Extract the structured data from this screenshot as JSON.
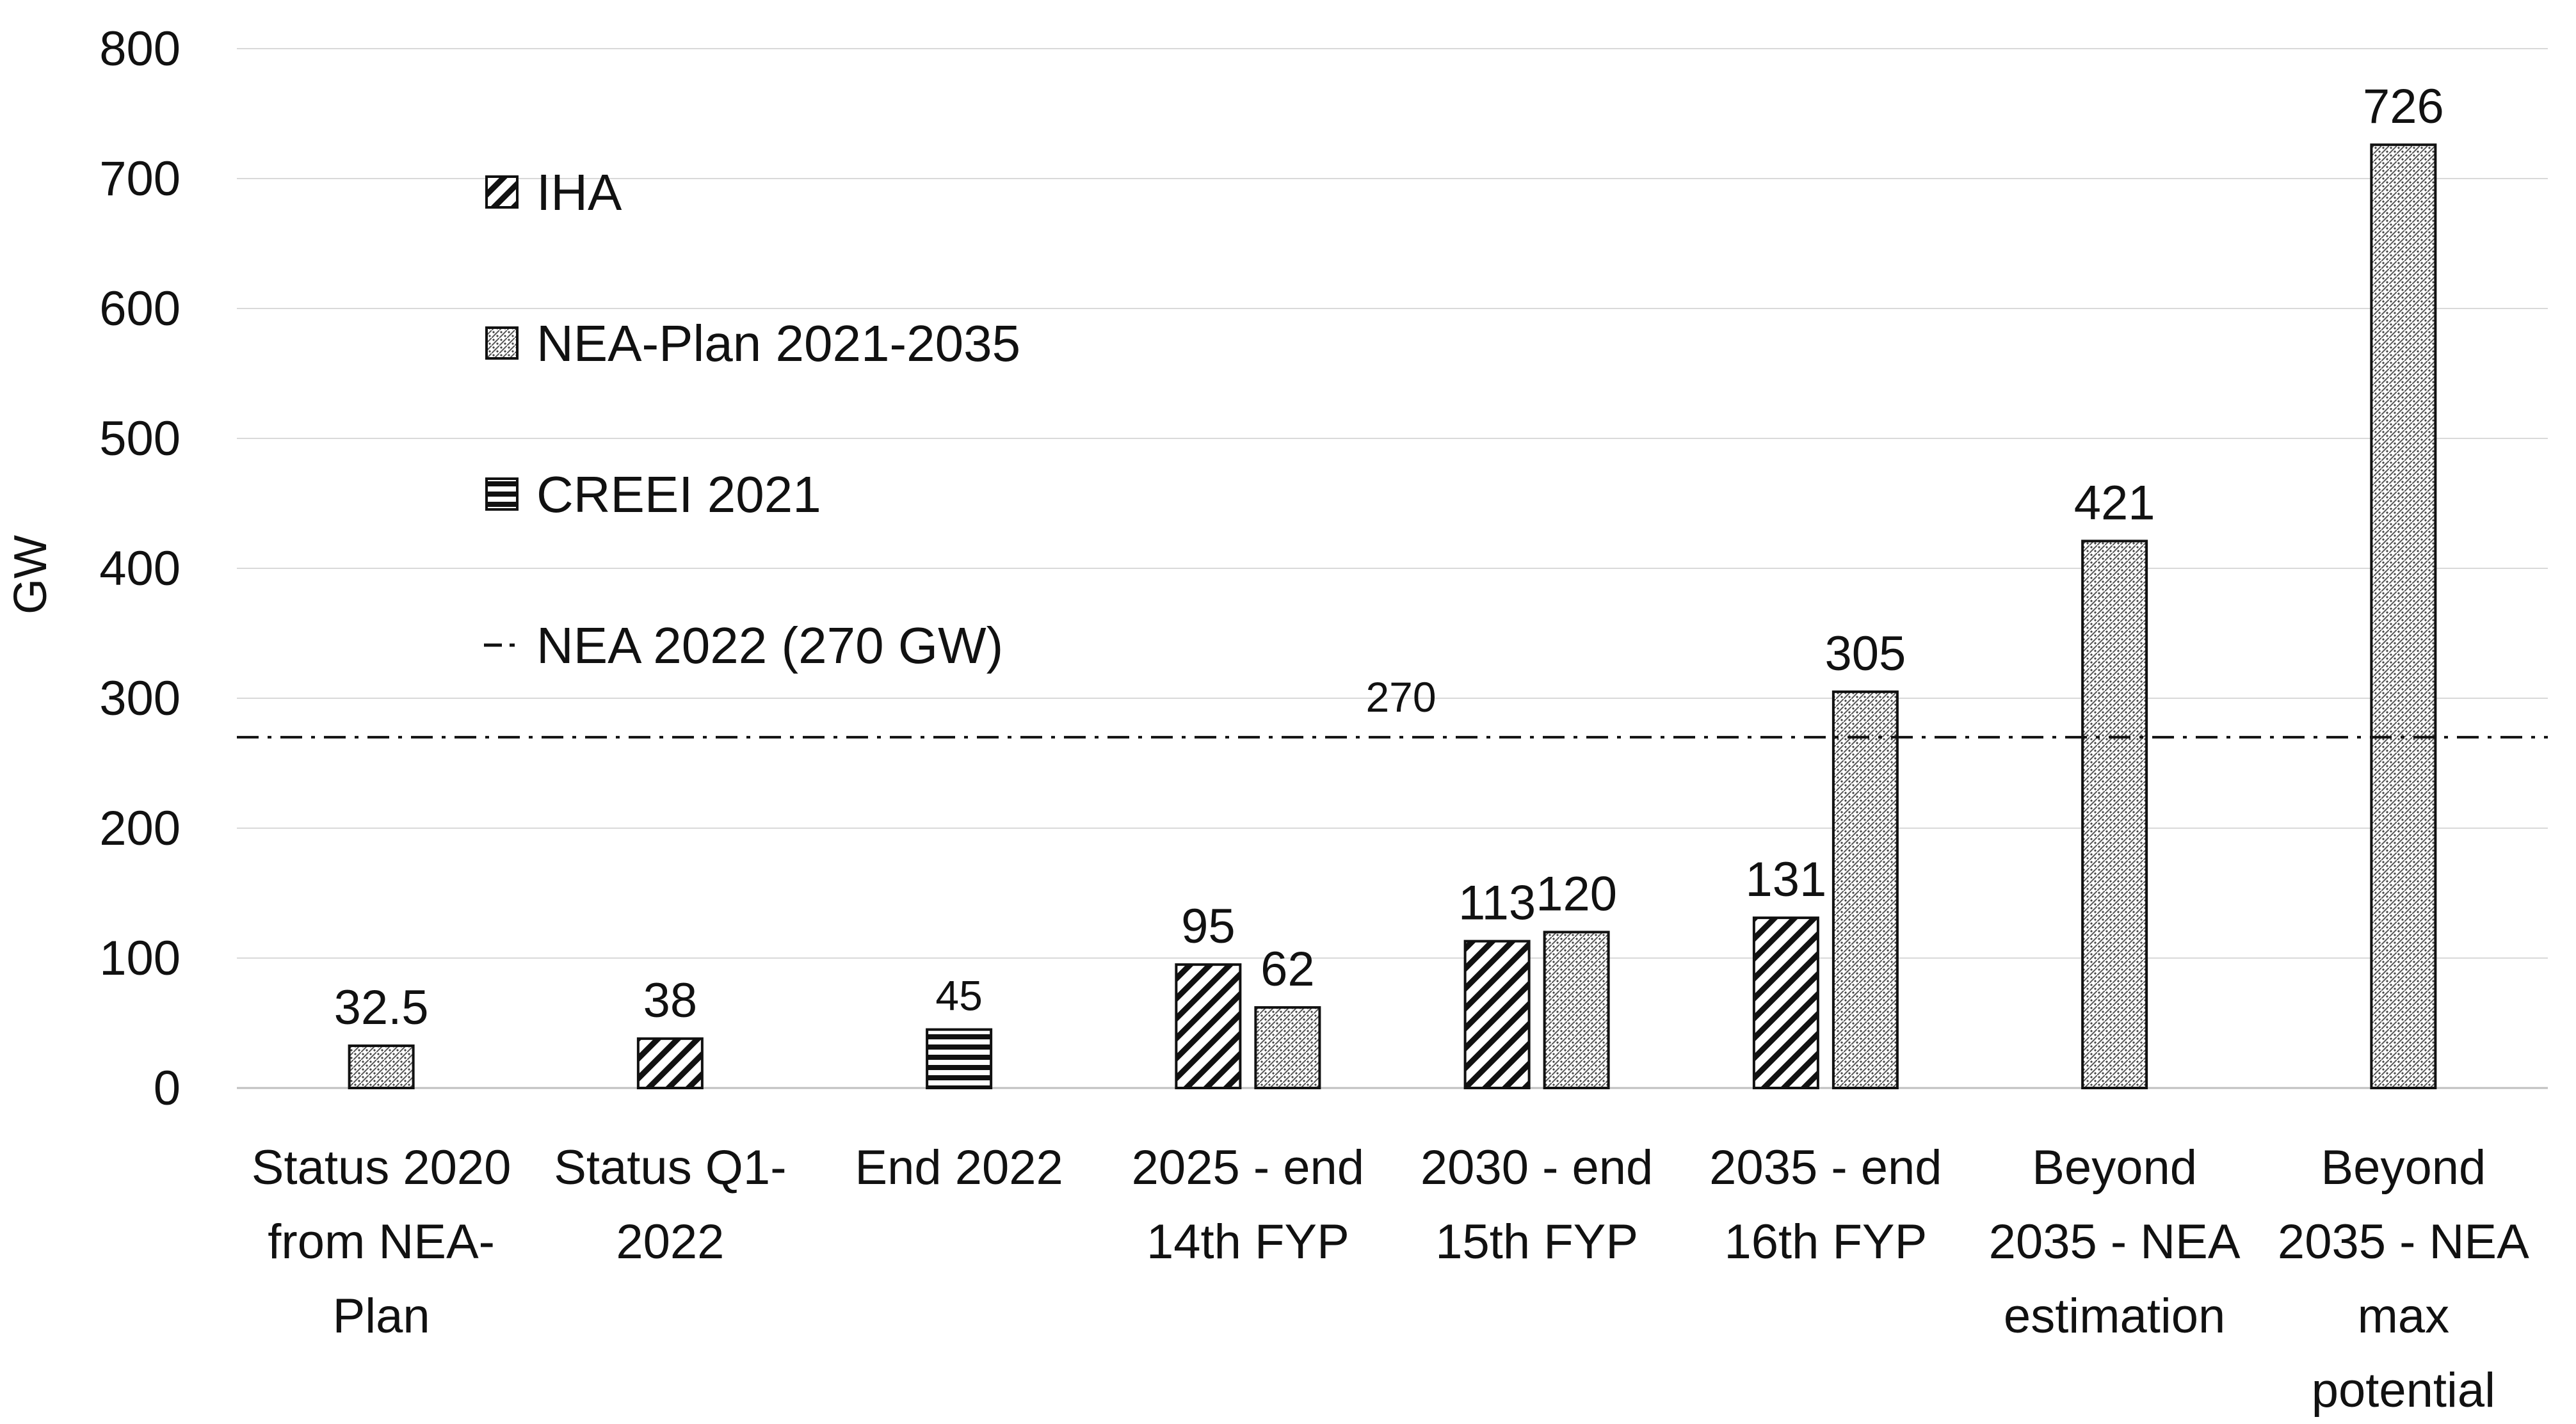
{
  "chart_data": {
    "type": "bar",
    "title": "",
    "xlabel": "",
    "ylabel": "GW",
    "ylim": [
      0,
      800
    ],
    "yticks": [
      0,
      100,
      200,
      300,
      400,
      500,
      600,
      700,
      800
    ],
    "grid": true,
    "legend_position": "top-left",
    "categories": [
      "Status 2020 from NEA-Plan",
      "Status Q1-2022",
      "End 2022",
      "2025 - end 14th FYP",
      "2030 - end 15th FYP",
      "2035 - end 16th FYP",
      "Beyond 2035 - NEA estimation",
      "Beyond 2035 - NEA max potential"
    ],
    "category_lines": [
      [
        "Status 2020",
        "from NEA-",
        "Plan"
      ],
      [
        "Status Q1-",
        "2022"
      ],
      [
        "End 2022"
      ],
      [
        "2025 - end",
        "14th FYP"
      ],
      [
        "2030 - end",
        "15th FYP"
      ],
      [
        "2035 - end",
        "16th FYP"
      ],
      [
        "Beyond",
        "2035 - NEA",
        "estimation"
      ],
      [
        "Beyond",
        "2035 - NEA",
        "max",
        "potential"
      ]
    ],
    "series": [
      {
        "name": "IHA",
        "pattern": "diagonal-thick",
        "values": [
          null,
          38,
          null,
          95,
          113,
          131,
          null,
          null
        ],
        "labels": [
          null,
          "38",
          null,
          "95",
          "113",
          "131",
          null,
          null
        ]
      },
      {
        "name": "NEA-Plan 2021-2035",
        "pattern": "fine-dots",
        "values": [
          32.5,
          null,
          null,
          62,
          120,
          305,
          421,
          726
        ],
        "labels": [
          "32.5",
          null,
          null,
          "62",
          "120",
          "305",
          "421",
          "726"
        ]
      },
      {
        "name": "CREEI 2021",
        "pattern": "horizontal",
        "values": [
          null,
          null,
          45,
          null,
          null,
          null,
          null,
          null
        ],
        "labels": [
          null,
          null,
          "45",
          null,
          null,
          null,
          null,
          null
        ]
      }
    ],
    "reference_line": {
      "name": "NEA 2022 (270 GW)",
      "value": 270,
      "label": "270",
      "style": "dash-dot"
    },
    "legend": [
      {
        "name": "IHA",
        "pattern": "diagonal-thick"
      },
      {
        "name": "NEA-Plan 2021-2035",
        "pattern": "fine-dots"
      },
      {
        "name": "CREEI 2021",
        "pattern": "horizontal"
      },
      {
        "name": "NEA 2022 (270 GW)",
        "pattern": "dash-dot-line"
      }
    ]
  },
  "colors": {
    "bar_stroke": "#111111",
    "grid": "#d9d9d9",
    "axis": "#bfbfbf",
    "text": "#111111",
    "background": "#ffffff"
  }
}
